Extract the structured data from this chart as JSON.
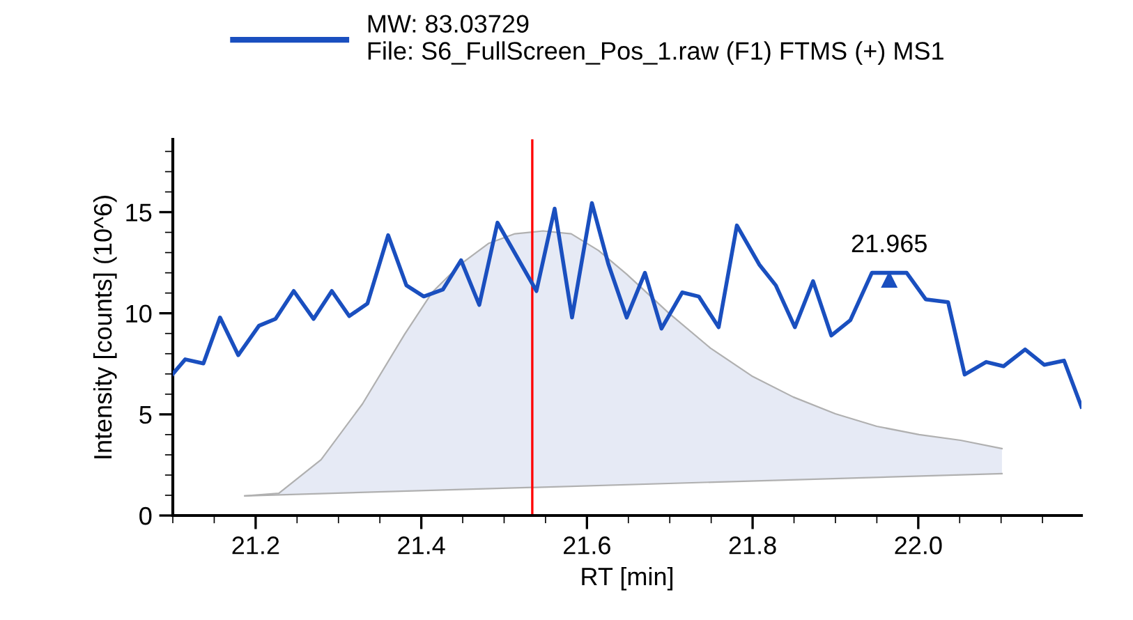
{
  "chart_data": {
    "type": "line",
    "xlabel": "RT [min]",
    "ylabel": "Intensity [counts] (10^6)",
    "xlim": [
      21.1,
      22.197
    ],
    "ylim": [
      0,
      18.6
    ],
    "xticks": [
      21.2,
      21.4,
      21.6,
      21.8,
      {
        "value": 22.0,
        "label": "22.0"
      }
    ],
    "yticks": [
      0,
      5,
      10,
      15
    ],
    "grid": false,
    "legend": "top",
    "marker": "none",
    "line_style": "solid",
    "series": [
      {
        "type": "area",
        "color": "#e6eaf5",
        "x": [
          21.187,
          21.228,
          21.279,
          21.329,
          21.38,
          21.413,
          21.447,
          21.481,
          21.513,
          21.547,
          21.581,
          21.614,
          21.648,
          21.699,
          21.749,
          21.799,
          21.849,
          21.9,
          21.95,
          22.001,
          22.051,
          22.101
        ],
        "values": [
          0.97,
          1.1,
          2.76,
          5.52,
          8.97,
          11.03,
          12.41,
          13.45,
          13.93,
          14.07,
          13.93,
          13.1,
          11.93,
          10.0,
          8.28,
          6.9,
          5.86,
          5.03,
          4.41,
          4.0,
          3.72,
          3.31
        ]
      },
      {
        "color": "#b0b0b0",
        "x": [
          21.187,
          22.101
        ],
        "values": [
          0.97,
          2.07
        ]
      },
      {
        "type": "line",
        "name": "MW: 83.03729\nFile: S6_FullScreen_Pos_1.raw (F1) FTMS (+) MS1",
        "color": "#1a4fbf",
        "x": [
          21.1,
          21.115,
          21.137,
          21.157,
          21.179,
          21.204,
          21.224,
          21.246,
          21.27,
          21.292,
          21.313,
          21.335,
          21.36,
          21.382,
          21.403,
          21.426,
          21.448,
          21.47,
          21.492,
          21.539,
          21.561,
          21.582,
          21.606,
          21.626,
          21.648,
          21.67,
          21.69,
          21.715,
          21.735,
          21.759,
          21.781,
          21.808,
          21.828,
          21.851,
          21.873,
          21.895,
          21.918,
          21.944,
          21.986,
          22.009,
          22.036,
          22.056,
          22.082,
          22.103,
          22.129,
          22.152,
          22.176,
          22.197
        ],
        "values": [
          7.0,
          7.72,
          7.52,
          9.79,
          7.93,
          9.38,
          9.72,
          11.1,
          9.72,
          11.1,
          9.86,
          10.48,
          13.86,
          11.38,
          10.83,
          11.17,
          12.62,
          10.41,
          14.48,
          11.1,
          15.17,
          9.79,
          15.45,
          12.41,
          9.79,
          12.0,
          9.24,
          11.03,
          10.83,
          9.31,
          14.34,
          12.41,
          11.38,
          9.31,
          11.59,
          8.9,
          9.66,
          12.0,
          12.0,
          10.69,
          10.55,
          6.97,
          7.59,
          7.38,
          8.21,
          7.45,
          7.66,
          5.38
        ]
      }
    ],
    "ref_lines": [
      {
        "axis": "x",
        "value": 21.534,
        "color": "#ff0000",
        "line_style": "solid"
      }
    ],
    "annotations": [
      {
        "text": "21.965",
        "x": 21.965,
        "y": 12.0
      }
    ]
  }
}
